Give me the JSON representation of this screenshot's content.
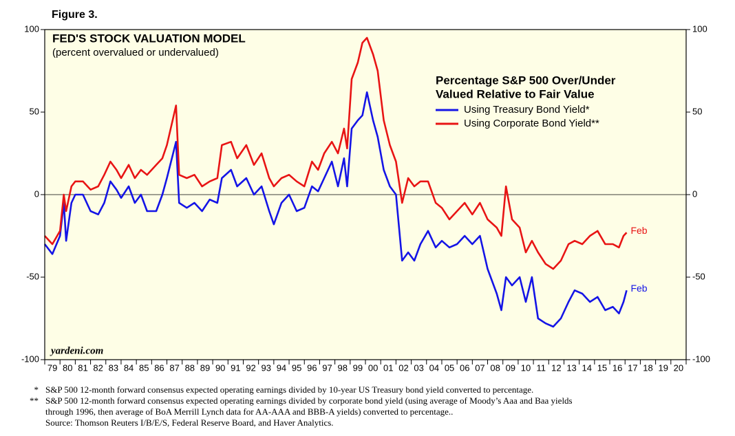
{
  "chart_data": {
    "type": "line",
    "figure_label": "Figure 3.",
    "title": "FED'S STOCK VALUATION MODEL",
    "subtitle": "(percent overvalued or undervalued)",
    "legend_title": [
      "Percentage S&P 500 Over/Under",
      "Valued Relative to Fair Value"
    ],
    "source_mark": "yardeni.com",
    "annotations": [
      "Feb",
      "Feb"
    ],
    "footnotes": [
      {
        "marker": "*",
        "lines": [
          "S&P 500 12-month forward consensus expected operating earnings divided by 10-year US Treasury bond yield converted to percentage."
        ]
      },
      {
        "marker": "**",
        "lines": [
          "S&P 500 12-month forward consensus expected operating earnings divided by corporate bond yield (using average of Moody’s Aaa and Baa yields",
          "through 1996, then average of BoA Merrill Lynch data for AA-AAA and BBB-A yields) converted to percentage..",
          "Source: Thomson Reuters I/B/E/S, Federal Reserve Board, and Haver Analytics."
        ]
      }
    ],
    "x": [
      1979.0,
      1979.5,
      1980.0,
      1980.25,
      1980.4,
      1980.75,
      1981.0,
      1981.5,
      1982.0,
      1982.5,
      1982.9,
      1983.3,
      1983.7,
      1984.0,
      1984.5,
      1984.9,
      1985.3,
      1985.7,
      1986.3,
      1986.7,
      1987.0,
      1987.6,
      1987.8,
      1988.3,
      1988.8,
      1989.3,
      1989.8,
      1990.3,
      1990.6,
      1991.2,
      1991.6,
      1992.2,
      1992.7,
      1993.2,
      1993.7,
      1994.0,
      1994.5,
      1995.0,
      1995.5,
      1996.0,
      1996.5,
      1996.9,
      1997.3,
      1997.8,
      1998.2,
      1998.6,
      1998.8,
      1999.1,
      1999.5,
      1999.8,
      2000.1,
      2000.5,
      2000.8,
      2001.2,
      2001.6,
      2002.0,
      2002.4,
      2002.8,
      2003.2,
      2003.6,
      2004.1,
      2004.6,
      2005.0,
      2005.5,
      2006.0,
      2006.5,
      2007.0,
      2007.5,
      2008.0,
      2008.6,
      2008.9,
      2009.2,
      2009.6,
      2010.1,
      2010.5,
      2010.9,
      2011.3,
      2011.8,
      2012.3,
      2012.8,
      2013.3,
      2013.7,
      2014.2,
      2014.7,
      2015.2,
      2015.7,
      2016.2,
      2016.6,
      2016.9,
      2017.1
    ],
    "series": [
      {
        "name": "Using Treasury Bond Yield*",
        "color": "#1414e6",
        "values": [
          -30,
          -36,
          -25,
          -5,
          -28,
          -5,
          0,
          0,
          -10,
          -12,
          -5,
          8,
          3,
          -2,
          5,
          -5,
          0,
          -10,
          -10,
          0,
          10,
          32,
          -5,
          -8,
          -5,
          -10,
          -3,
          -5,
          10,
          15,
          5,
          10,
          0,
          5,
          -10,
          -18,
          -5,
          0,
          -10,
          -8,
          5,
          2,
          10,
          20,
          5,
          22,
          5,
          40,
          45,
          48,
          62,
          45,
          35,
          15,
          5,
          0,
          -40,
          -35,
          -40,
          -30,
          -22,
          -32,
          -28,
          -32,
          -30,
          -25,
          -30,
          -25,
          -45,
          -60,
          -70,
          -50,
          -55,
          -50,
          -65,
          -50,
          -75,
          -78,
          -80,
          -75,
          -65,
          -58,
          -60,
          -65,
          -62,
          -70,
          -68,
          -72,
          -65,
          -58
        ]
      },
      {
        "name": "Using Corporate Bond Yield**",
        "color": "#e81414",
        "values": [
          -25,
          -30,
          -22,
          0,
          -10,
          5,
          8,
          8,
          3,
          5,
          12,
          20,
          15,
          10,
          18,
          10,
          15,
          12,
          18,
          22,
          30,
          54,
          12,
          10,
          12,
          5,
          8,
          10,
          30,
          32,
          22,
          30,
          18,
          25,
          10,
          5,
          10,
          12,
          8,
          5,
          20,
          15,
          25,
          32,
          25,
          40,
          28,
          70,
          80,
          92,
          95,
          85,
          75,
          45,
          30,
          20,
          -5,
          10,
          5,
          8,
          8,
          -5,
          -8,
          -15,
          -10,
          -5,
          -12,
          -5,
          -15,
          -20,
          -25,
          5,
          -15,
          -20,
          -35,
          -28,
          -35,
          -42,
          -45,
          -40,
          -30,
          -28,
          -30,
          -25,
          -22,
          -30,
          -30,
          -32,
          -25,
          -23
        ]
      }
    ],
    "xlim": [
      1979,
      2021
    ],
    "xticks": [
      {
        "value": 1979.5,
        "label": "79"
      },
      {
        "value": 1980.5,
        "label": "80"
      },
      {
        "value": 1981.5,
        "label": "81"
      },
      {
        "value": 1982.5,
        "label": "82"
      },
      {
        "value": 1983.5,
        "label": "83"
      },
      {
        "value": 1984.5,
        "label": "84"
      },
      {
        "value": 1985.5,
        "label": "85"
      },
      {
        "value": 1986.5,
        "label": "86"
      },
      {
        "value": 1987.5,
        "label": "87"
      },
      {
        "value": 1988.5,
        "label": "88"
      },
      {
        "value": 1989.5,
        "label": "89"
      },
      {
        "value": 1990.5,
        "label": "90"
      },
      {
        "value": 1991.5,
        "label": "91"
      },
      {
        "value": 1992.5,
        "label": "92"
      },
      {
        "value": 1993.5,
        "label": "93"
      },
      {
        "value": 1994.5,
        "label": "94"
      },
      {
        "value": 1995.5,
        "label": "95"
      },
      {
        "value": 1996.5,
        "label": "96"
      },
      {
        "value": 1997.5,
        "label": "97"
      },
      {
        "value": 1998.5,
        "label": "98"
      },
      {
        "value": 1999.5,
        "label": "99"
      },
      {
        "value": 2000.5,
        "label": "00"
      },
      {
        "value": 2001.5,
        "label": "01"
      },
      {
        "value": 2002.5,
        "label": "02"
      },
      {
        "value": 2003.5,
        "label": "03"
      },
      {
        "value": 2004.5,
        "label": "04"
      },
      {
        "value": 2005.5,
        "label": "05"
      },
      {
        "value": 2006.5,
        "label": "06"
      },
      {
        "value": 2007.5,
        "label": "07"
      },
      {
        "value": 2008.5,
        "label": "08"
      },
      {
        "value": 2009.5,
        "label": "09"
      },
      {
        "value": 2010.5,
        "label": "10"
      },
      {
        "value": 2011.5,
        "label": "11"
      },
      {
        "value": 2012.5,
        "label": "12"
      },
      {
        "value": 2013.5,
        "label": "13"
      },
      {
        "value": 2014.5,
        "label": "14"
      },
      {
        "value": 2015.5,
        "label": "15"
      },
      {
        "value": 2016.5,
        "label": "16"
      },
      {
        "value": 2017.5,
        "label": "17"
      },
      {
        "value": 2018.5,
        "label": "18"
      },
      {
        "value": 2019.5,
        "label": "19"
      },
      {
        "value": 2020.5,
        "label": "20"
      }
    ],
    "ylim": [
      -100,
      100
    ],
    "yticks": [
      -100,
      -50,
      0,
      50,
      100
    ],
    "right_axis": true,
    "zero_line": true,
    "plot_background": "#fefee6"
  }
}
